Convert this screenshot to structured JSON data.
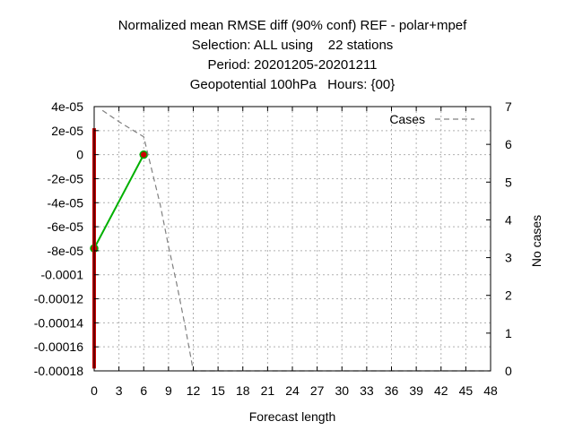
{
  "title_lines": [
    "Normalized mean RMSE diff (90% conf) REF - polar+mpef",
    "Selection: ALL using    22 stations",
    "Period: 20201205-20201211",
    "Geopotential 100hPa   Hours: {00}"
  ],
  "chart_data": {
    "type": "line",
    "title": "Normalized mean RMSE diff (90% conf) REF - polar+mpef",
    "xlabel": "Forecast length",
    "ylabel": "",
    "y2label": "No cases",
    "xlim": [
      0,
      48
    ],
    "ylim": [
      -0.00018,
      4e-05
    ],
    "y2lim": [
      0,
      7
    ],
    "x_ticks": [
      "0",
      "3",
      "6",
      "9",
      "12",
      "15",
      "18",
      "21",
      "24",
      "27",
      "30",
      "33",
      "36",
      "39",
      "42",
      "45",
      "48"
    ],
    "y_ticks": [
      "4e-05",
      "2e-05",
      "0",
      "-2e-05",
      "-4e-05",
      "-6e-05",
      "-8e-05",
      "-0.0001",
      "-0.00012",
      "-0.00014",
      "-0.00016",
      "-0.00018"
    ],
    "y2_ticks": [
      "7",
      "6",
      "5",
      "4",
      "3",
      "2",
      "1",
      "0"
    ],
    "grid": true,
    "legend": {
      "position": "top-right",
      "entries": [
        "Cases"
      ]
    },
    "series": [
      {
        "kind": "mean",
        "color": "#00b000",
        "axis": "y1",
        "x": [
          0,
          6
        ],
        "y": [
          -7.8e-05,
          0.0
        ]
      },
      {
        "kind": "confidence_interval",
        "color": "#cc0000",
        "axis": "y1",
        "intervals": [
          {
            "x": 0,
            "low": -0.000178,
            "high": 2.2e-05
          },
          {
            "x": 6,
            "low": -5e-07,
            "high": 5e-07
          }
        ]
      },
      {
        "name": "Cases",
        "color": "#808080",
        "dash": "dashed",
        "axis": "y2",
        "x": [
          1,
          3,
          6,
          7,
          8,
          9,
          10,
          11,
          12,
          15,
          18,
          21,
          24,
          27,
          30,
          33,
          36,
          39,
          42,
          45,
          48
        ],
        "y": [
          6.9,
          6.6,
          6.2,
          5.3,
          4.4,
          3.3,
          2.3,
          1.2,
          0,
          0,
          0,
          0,
          0,
          0,
          0,
          0,
          0,
          0,
          0,
          0,
          0
        ]
      }
    ]
  }
}
